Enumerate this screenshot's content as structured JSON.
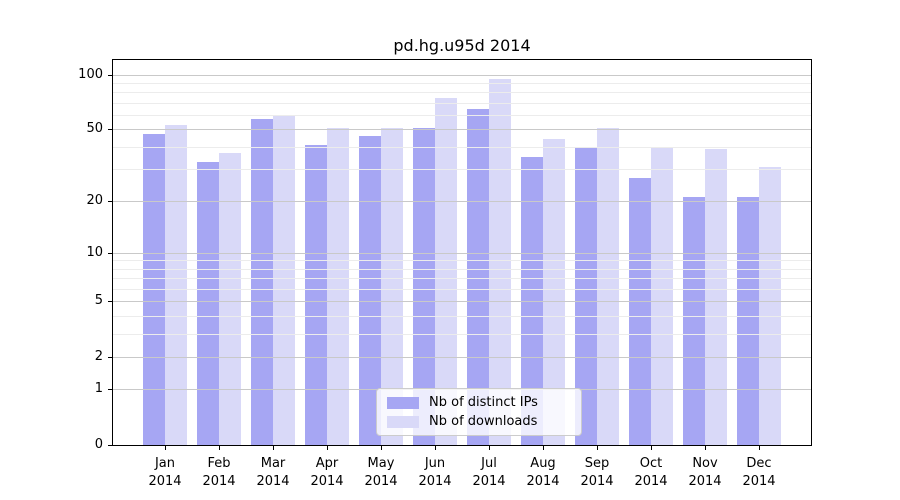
{
  "title": "pd.hg.u95d 2014",
  "chart_data": {
    "type": "bar",
    "title": "pd.hg.u95d 2014",
    "categories": [
      "Jan",
      "Feb",
      "Mar",
      "Apr",
      "May",
      "Jun",
      "Jul",
      "Aug",
      "Sep",
      "Oct",
      "Nov",
      "Dec"
    ],
    "category_year": "2014",
    "series": [
      {
        "name": "Nb of distinct IPs",
        "color": "#a6a6f3",
        "values": [
          47,
          33,
          57,
          41,
          46,
          51,
          65,
          35,
          40,
          27,
          21,
          21
        ]
      },
      {
        "name": "Nb of downloads",
        "color": "#d9d9f8",
        "values": [
          53,
          37,
          60,
          51,
          51,
          74,
          95,
          44,
          51,
          40,
          39,
          31
        ]
      }
    ],
    "xlabel": "",
    "ylabel": "",
    "y_scale": "log10(value+1), zero at baseline",
    "y_ticks": [
      100,
      50,
      20,
      10,
      5,
      2,
      1,
      0
    ],
    "y_minor_ticks": [
      3,
      4,
      6,
      7,
      8,
      9,
      30,
      40,
      60,
      70,
      80,
      90
    ],
    "ylim": [
      0,
      120
    ],
    "grid": "horizontal major and minor lines, drawn over bars",
    "legend_position": "lower center inside plot"
  },
  "colors": {
    "bar_distinct_ips": "#a6a6f3",
    "bar_downloads": "#d9d9f8",
    "grid_major": "#c9c9c9",
    "grid_minor": "#ececec",
    "axis": "#000000",
    "background": "#ffffff",
    "legend_border": "#cccccc"
  }
}
